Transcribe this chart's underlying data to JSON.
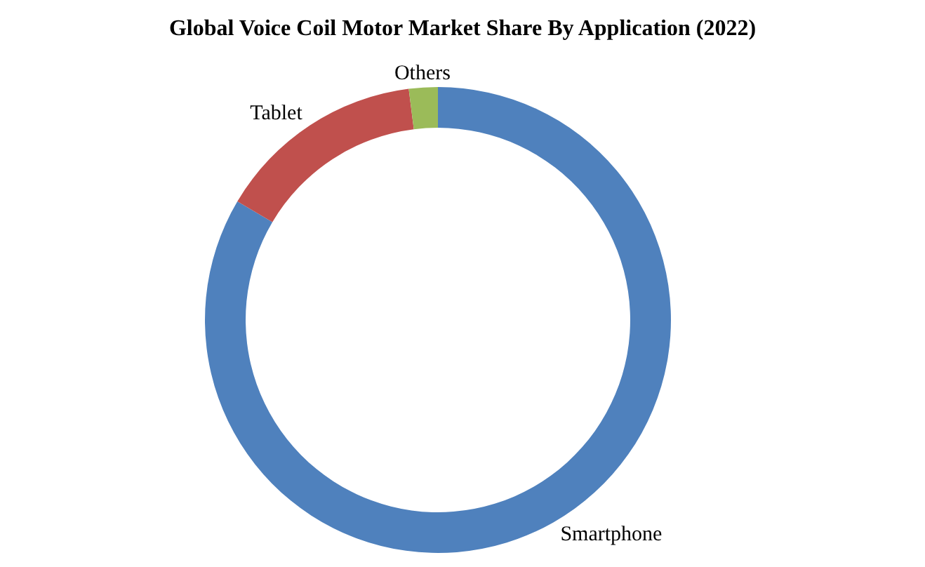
{
  "chart_data": {
    "type": "donut",
    "title": "Global Voice Coil Motor Market Share By Application (2022)",
    "categories": [
      "Smartphone",
      "Tablet",
      "Others"
    ],
    "values": [
      83.5,
      14.5,
      2
    ],
    "colors": [
      "#4f81bd",
      "#c0504d",
      "#9bbb59"
    ],
    "legend": false
  }
}
